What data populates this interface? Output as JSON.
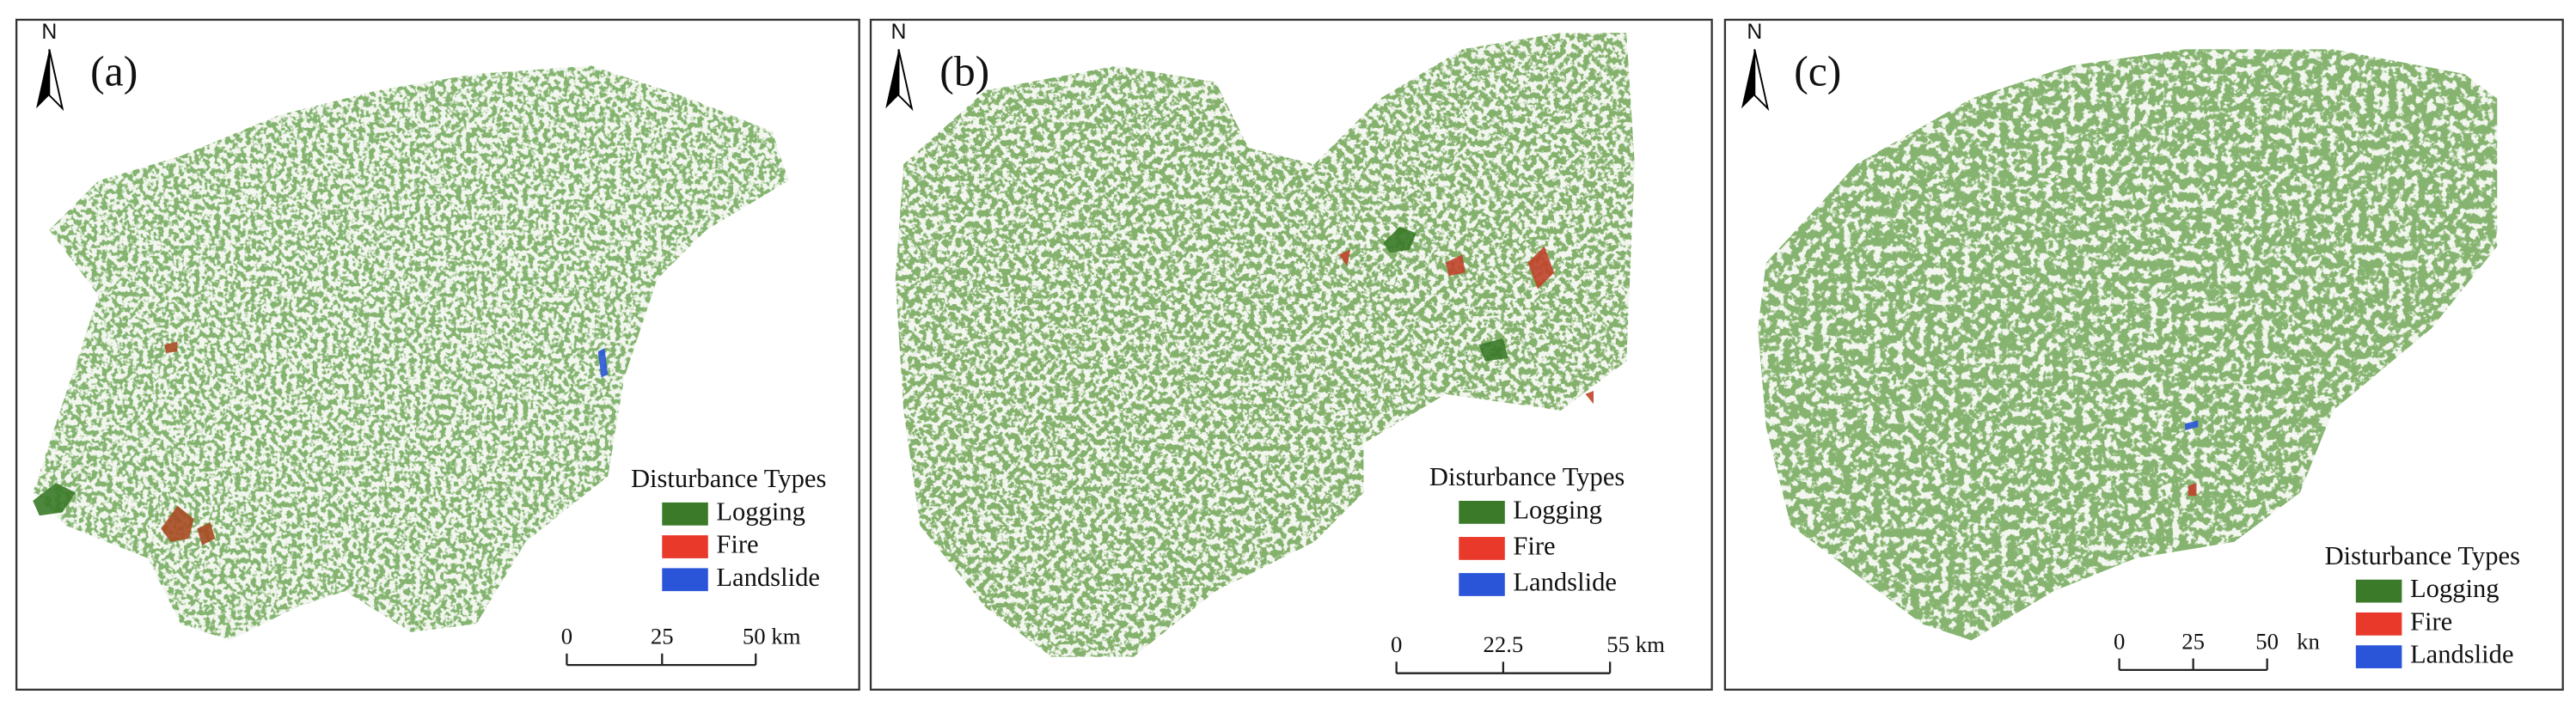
{
  "panels": [
    {
      "label": "(a)",
      "north": "N",
      "legend": {
        "title": "Disturbance Types",
        "items": [
          {
            "name": "Logging",
            "color": "#3a7a28"
          },
          {
            "name": "Fire",
            "color": "#e8392a"
          },
          {
            "name": "Landslide",
            "color": "#2a55d8"
          }
        ]
      },
      "scale_bar": [
        "0",
        "25",
        "50 km"
      ]
    },
    {
      "label": "(b)",
      "north": "N",
      "legend": {
        "title": "Disturbance Types",
        "items": [
          {
            "name": "Logging",
            "color": "#3a7a28"
          },
          {
            "name": "Fire",
            "color": "#e8392a"
          },
          {
            "name": "Landslide",
            "color": "#2a55d8"
          }
        ]
      },
      "scale_bar": [
        "0",
        "22.5",
        "55 km"
      ]
    },
    {
      "label": "(c)",
      "north": "N",
      "legend": {
        "title": "Disturbance Types",
        "items": [
          {
            "name": "Logging",
            "color": "#3a7a28"
          },
          {
            "name": "Fire",
            "color": "#e8392a"
          },
          {
            "name": "Landslide",
            "color": "#2a55d8"
          }
        ]
      },
      "scale_bar": [
        "0",
        "25",
        "50",
        "kn"
      ]
    }
  ]
}
